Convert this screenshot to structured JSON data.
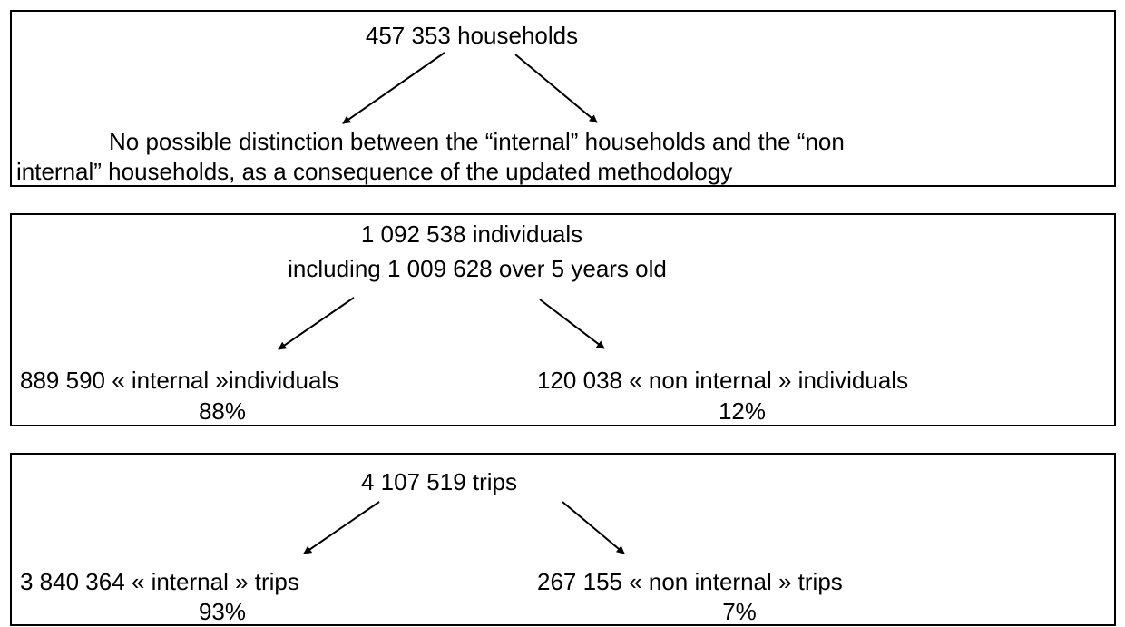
{
  "boxes": [
    {
      "title": "457 353 households",
      "note_line1": "No possible distinction between the “internal” households and the “non",
      "note_line2": "internal” households, as a consequence of the updated methodology"
    },
    {
      "title": "1 092 538 individuals",
      "subtitle": "including 1 009 628 over 5 years old",
      "left": {
        "label": "889 590 « internal »individuals",
        "share": "88%"
      },
      "right": {
        "label": "120 038 « non internal » individuals",
        "share": "12%"
      }
    },
    {
      "title": "4 107 519 trips",
      "left": {
        "label": "3 840 364 « internal » trips",
        "share": "93%"
      },
      "right": {
        "label": "267 155 « non internal » trips",
        "share": "7%"
      }
    }
  ]
}
